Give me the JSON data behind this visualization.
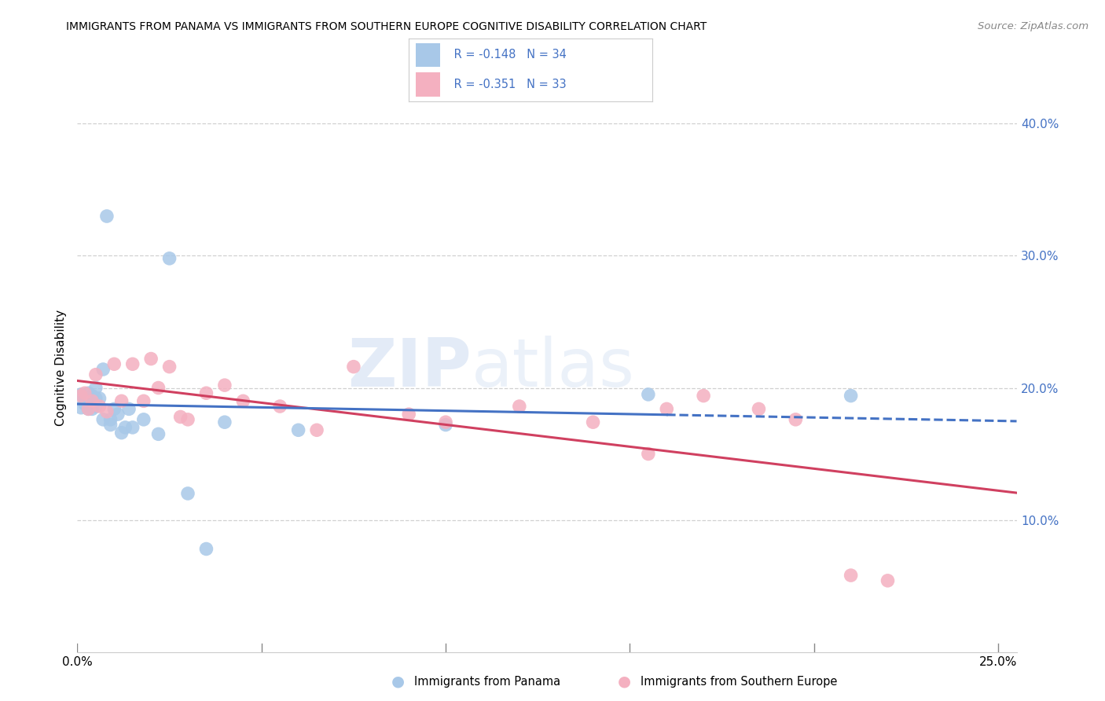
{
  "title": "IMMIGRANTS FROM PANAMA VS IMMIGRANTS FROM SOUTHERN EUROPE COGNITIVE DISABILITY CORRELATION CHART",
  "source": "Source: ZipAtlas.com",
  "ylabel": "Cognitive Disability",
  "xlim": [
    0.0,
    0.255
  ],
  "ylim": [
    0.0,
    0.43
  ],
  "color_panama": "#a8c8e8",
  "color_s_europe": "#f4b0c0",
  "line_color_panama": "#4472c4",
  "line_color_s_europe": "#d04060",
  "legend_r1": "R = -0.148",
  "legend_n1": "N = 34",
  "legend_r2": "R = -0.351",
  "legend_n2": "N = 33",
  "watermark_text": "ZIPatlas",
  "panama_x": [
    0.001,
    0.001,
    0.002,
    0.002,
    0.003,
    0.003,
    0.003,
    0.004,
    0.004,
    0.005,
    0.005,
    0.005,
    0.006,
    0.007,
    0.007,
    0.008,
    0.009,
    0.009,
    0.01,
    0.011,
    0.012,
    0.013,
    0.014,
    0.015,
    0.018,
    0.022,
    0.025,
    0.03,
    0.04,
    0.06,
    0.1,
    0.155,
    0.21,
    0.035
  ],
  "panama_y": [
    0.195,
    0.185,
    0.192,
    0.188,
    0.196,
    0.19,
    0.184,
    0.194,
    0.184,
    0.2,
    0.192,
    0.186,
    0.192,
    0.176,
    0.214,
    0.33,
    0.176,
    0.172,
    0.184,
    0.18,
    0.166,
    0.17,
    0.184,
    0.17,
    0.176,
    0.165,
    0.298,
    0.12,
    0.174,
    0.168,
    0.172,
    0.195,
    0.194,
    0.078
  ],
  "s_europe_x": [
    0.001,
    0.002,
    0.003,
    0.004,
    0.005,
    0.006,
    0.008,
    0.01,
    0.012,
    0.015,
    0.018,
    0.02,
    0.022,
    0.025,
    0.028,
    0.03,
    0.035,
    0.04,
    0.045,
    0.055,
    0.065,
    0.075,
    0.09,
    0.1,
    0.12,
    0.14,
    0.155,
    0.16,
    0.17,
    0.185,
    0.195,
    0.21,
    0.22
  ],
  "s_europe_y": [
    0.194,
    0.196,
    0.184,
    0.19,
    0.21,
    0.186,
    0.182,
    0.218,
    0.19,
    0.218,
    0.19,
    0.222,
    0.2,
    0.216,
    0.178,
    0.176,
    0.196,
    0.202,
    0.19,
    0.186,
    0.168,
    0.216,
    0.18,
    0.174,
    0.186,
    0.174,
    0.15,
    0.184,
    0.194,
    0.184,
    0.176,
    0.058,
    0.054
  ],
  "background_color": "#ffffff",
  "grid_color": "#d0d0d0",
  "tick_color_blue": "#4472c4"
}
